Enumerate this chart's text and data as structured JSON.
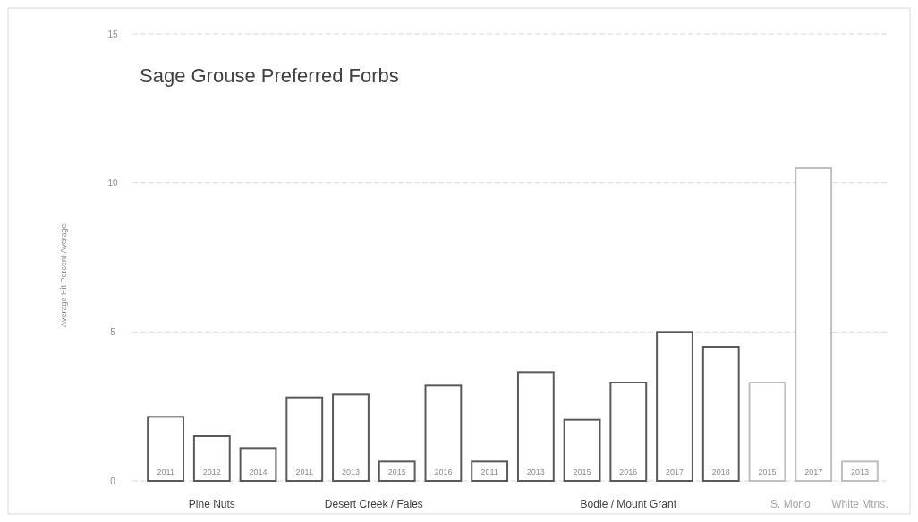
{
  "chart_data": {
    "type": "bar",
    "title": "Sage Grouse Preferred Forbs",
    "ylabel": "Average Hit Percent Average",
    "categories": [
      "2011",
      "2012",
      "2014",
      "2011",
      "2013",
      "2015",
      "2016",
      "2011",
      "2013",
      "2015",
      "2016",
      "2017",
      "2018",
      "2015",
      "2017",
      "2013"
    ],
    "values": [
      2.15,
      1.5,
      1.1,
      2.8,
      2.9,
      0.65,
      3.2,
      0.65,
      3.65,
      2.05,
      3.3,
      5.0,
      4.5,
      3.3,
      10.5,
      0.65
    ],
    "colors": [
      "#595959",
      "#595959",
      "#595959",
      "#595959",
      "#595959",
      "#595959",
      "#595959",
      "#595959",
      "#595959",
      "#595959",
      "#595959",
      "#595959",
      "#595959",
      "#bfbfbf",
      "#bfbfbf",
      "#bfbfbf"
    ],
    "ylim": [
      0,
      15
    ],
    "yticks": [
      0,
      5,
      10,
      15
    ],
    "grid": "y",
    "annotations": [
      "Pine Nuts",
      "Desert Creek / Fales",
      "Bodie / Mount Grant",
      "S. Mono",
      "White Mtns."
    ]
  }
}
